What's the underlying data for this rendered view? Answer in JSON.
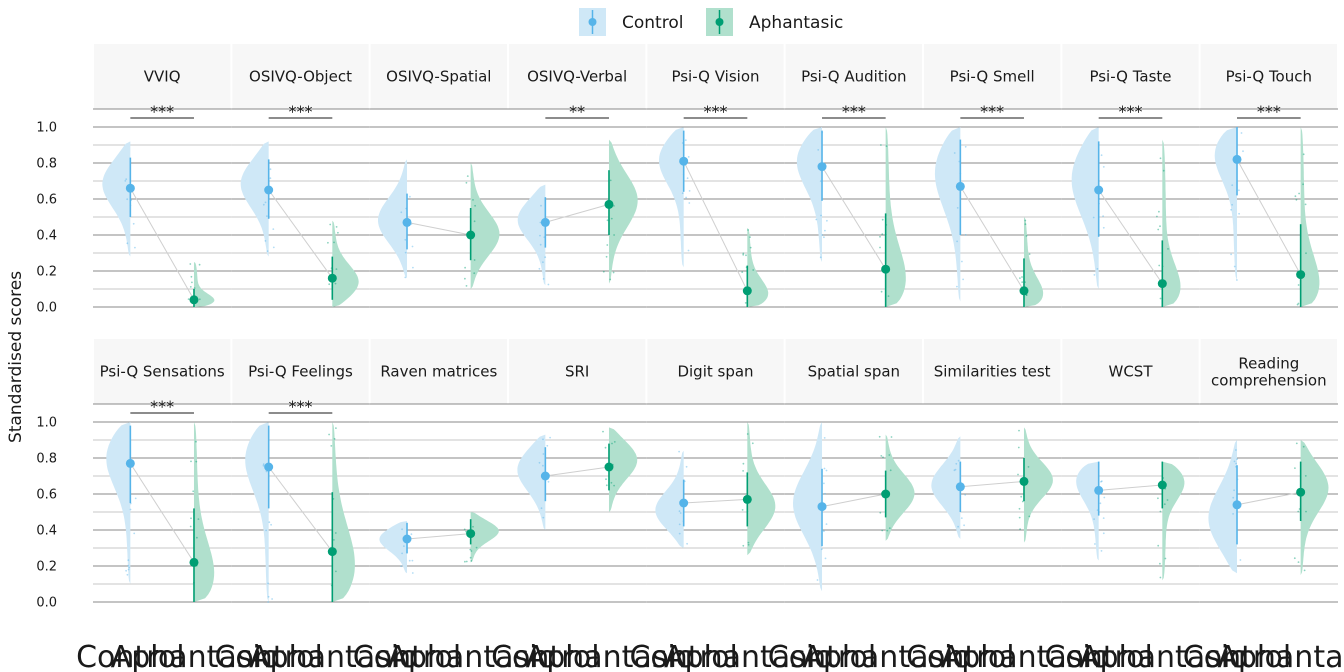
{
  "chart_data": {
    "type": "raincloud",
    "ylabel": "Standardised scores",
    "y_ticks": [
      "0.0",
      "0.2",
      "0.4",
      "0.6",
      "0.8",
      "1.0"
    ],
    "ylim": [
      0,
      1.0
    ],
    "grid": true,
    "legend": {
      "position": "top",
      "entries": [
        "Control",
        "Aphantasic"
      ]
    },
    "colors": {
      "Control": "#56b4e9",
      "Aphantasic": "#009e73",
      "control_fill": "#cfe8f7",
      "aphantasic_fill": "#b0e0cd"
    },
    "groups": [
      "Control",
      "Aphantasic"
    ],
    "panels": [
      {
        "label": "VVIQ",
        "sig": "***",
        "control": {
          "mean": 0.66,
          "low": 0.5,
          "high": 0.83,
          "min": 0.28,
          "max": 0.92,
          "peak": 0.7
        },
        "aphantasic": {
          "mean": 0.04,
          "low": 0.0,
          "high": 0.1,
          "min": 0.0,
          "max": 0.25,
          "peak": 0.02
        }
      },
      {
        "label": "OSIVQ-Object",
        "sig": "***",
        "control": {
          "mean": 0.65,
          "low": 0.49,
          "high": 0.82,
          "min": 0.28,
          "max": 0.92,
          "peak": 0.7
        },
        "aphantasic": {
          "mean": 0.16,
          "low": 0.04,
          "high": 0.28,
          "min": 0.0,
          "max": 0.48,
          "peak": 0.12
        }
      },
      {
        "label": "OSIVQ-Spatial",
        "sig": "",
        "control": {
          "mean": 0.47,
          "low": 0.32,
          "high": 0.63,
          "min": 0.16,
          "max": 0.82,
          "peak": 0.48
        },
        "aphantasic": {
          "mean": 0.4,
          "low": 0.26,
          "high": 0.55,
          "min": 0.1,
          "max": 0.8,
          "peak": 0.4
        }
      },
      {
        "label": "OSIVQ-Verbal",
        "sig": "**",
        "control": {
          "mean": 0.47,
          "low": 0.33,
          "high": 0.61,
          "min": 0.12,
          "max": 0.68,
          "peak": 0.5
        },
        "aphantasic": {
          "mean": 0.57,
          "low": 0.4,
          "high": 0.76,
          "min": 0.13,
          "max": 0.93,
          "peak": 0.6
        }
      },
      {
        "label": "Psi-Q Vision",
        "sig": "***",
        "control": {
          "mean": 0.81,
          "low": 0.64,
          "high": 0.98,
          "min": 0.22,
          "max": 1.0,
          "peak": 0.85
        },
        "aphantasic": {
          "mean": 0.09,
          "low": 0.0,
          "high": 0.23,
          "min": 0.0,
          "max": 0.44,
          "peak": 0.03
        }
      },
      {
        "label": "Psi-Q Audition",
        "sig": "***",
        "control": {
          "mean": 0.78,
          "low": 0.59,
          "high": 0.98,
          "min": 0.25,
          "max": 1.0,
          "peak": 0.85
        },
        "aphantasic": {
          "mean": 0.21,
          "low": 0.0,
          "high": 0.52,
          "min": 0.0,
          "max": 1.0,
          "peak": 0.05
        }
      },
      {
        "label": "Psi-Q Smell",
        "sig": "***",
        "control": {
          "mean": 0.67,
          "low": 0.4,
          "high": 0.93,
          "min": 0.03,
          "max": 1.0,
          "peak": 0.8
        },
        "aphantasic": {
          "mean": 0.09,
          "low": 0.0,
          "high": 0.27,
          "min": 0.0,
          "max": 0.5,
          "peak": 0.01
        }
      },
      {
        "label": "Psi-Q Taste",
        "sig": "***",
        "control": {
          "mean": 0.65,
          "low": 0.39,
          "high": 0.92,
          "min": 0.1,
          "max": 1.0,
          "peak": 0.75
        },
        "aphantasic": {
          "mean": 0.13,
          "low": 0.0,
          "high": 0.37,
          "min": 0.0,
          "max": 0.93,
          "peak": 0.03
        }
      },
      {
        "label": "Psi-Q Touch",
        "sig": "***",
        "control": {
          "mean": 0.82,
          "low": 0.62,
          "high": 1.0,
          "min": 0.15,
          "max": 1.0,
          "peak": 0.9
        },
        "aphantasic": {
          "mean": 0.18,
          "low": 0.0,
          "high": 0.46,
          "min": 0.0,
          "max": 1.0,
          "peak": 0.03
        }
      },
      {
        "label": "Psi-Q Sensations",
        "sig": "***",
        "control": {
          "mean": 0.77,
          "low": 0.55,
          "high": 0.98,
          "min": 0.1,
          "max": 1.0,
          "peak": 0.85
        },
        "aphantasic": {
          "mean": 0.22,
          "low": 0.0,
          "high": 0.52,
          "min": 0.0,
          "max": 1.0,
          "peak": 0.05
        }
      },
      {
        "label": "Psi-Q Feelings",
        "sig": "***",
        "control": {
          "mean": 0.75,
          "low": 0.52,
          "high": 0.98,
          "min": 0.0,
          "max": 1.0,
          "peak": 0.85
        },
        "aphantasic": {
          "mean": 0.28,
          "low": 0.0,
          "high": 0.61,
          "min": 0.0,
          "max": 1.0,
          "peak": 0.1
        }
      },
      {
        "label": "Raven matrices",
        "sig": "",
        "control": {
          "mean": 0.35,
          "low": 0.27,
          "high": 0.44,
          "min": 0.16,
          "max": 0.45,
          "peak": 0.36
        },
        "aphantasic": {
          "mean": 0.38,
          "low": 0.32,
          "high": 0.46,
          "min": 0.22,
          "max": 0.5,
          "peak": 0.4
        }
      },
      {
        "label": "SRI",
        "sig": "",
        "control": {
          "mean": 0.7,
          "low": 0.56,
          "high": 0.86,
          "min": 0.4,
          "max": 0.93,
          "peak": 0.75
        },
        "aphantasic": {
          "mean": 0.75,
          "low": 0.62,
          "high": 0.88,
          "min": 0.5,
          "max": 0.97,
          "peak": 0.8
        }
      },
      {
        "label": "Digit span",
        "sig": "",
        "control": {
          "mean": 0.55,
          "low": 0.42,
          "high": 0.68,
          "min": 0.3,
          "max": 0.84,
          "peak": 0.5
        },
        "aphantasic": {
          "mean": 0.57,
          "low": 0.42,
          "high": 0.72,
          "min": 0.26,
          "max": 1.0,
          "peak": 0.52
        }
      },
      {
        "label": "Spatial span",
        "sig": "",
        "control": {
          "mean": 0.53,
          "low": 0.31,
          "high": 0.74,
          "min": 0.06,
          "max": 1.0,
          "peak": 0.55
        },
        "aphantasic": {
          "mean": 0.6,
          "low": 0.47,
          "high": 0.73,
          "min": 0.34,
          "max": 0.93,
          "peak": 0.6
        }
      },
      {
        "label": "Similarities test",
        "sig": "",
        "control": {
          "mean": 0.64,
          "low": 0.5,
          "high": 0.78,
          "min": 0.35,
          "max": 0.92,
          "peak": 0.65
        },
        "aphantasic": {
          "mean": 0.67,
          "low": 0.56,
          "high": 0.8,
          "min": 0.33,
          "max": 0.97,
          "peak": 0.68
        }
      },
      {
        "label": "WCST",
        "sig": "",
        "control": {
          "mean": 0.62,
          "low": 0.48,
          "high": 0.78,
          "min": 0.23,
          "max": 0.78,
          "peak": 0.72
        },
        "aphantasic": {
          "mean": 0.65,
          "low": 0.52,
          "high": 0.78,
          "min": 0.12,
          "max": 0.78,
          "peak": 0.7
        }
      },
      {
        "label": "Reading comprehension",
        "sig": "",
        "control": {
          "mean": 0.54,
          "low": 0.32,
          "high": 0.76,
          "min": 0.16,
          "max": 0.9,
          "peak": 0.45
        },
        "aphantasic": {
          "mean": 0.61,
          "low": 0.45,
          "high": 0.78,
          "min": 0.15,
          "max": 0.9,
          "peak": 0.65
        }
      }
    ]
  }
}
